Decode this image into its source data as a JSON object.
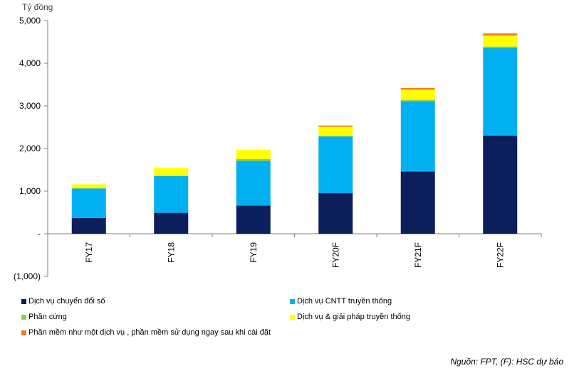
{
  "chart_data": {
    "type": "bar",
    "stacked": true,
    "unit_label": "Tỷ đồng",
    "categories": [
      "FY17",
      "FY18",
      "FY19",
      "FY20F",
      "FY21F",
      "FY22F"
    ],
    "ylim": [
      -1000,
      5000
    ],
    "y_ticks": [
      -1000,
      0,
      1000,
      2000,
      3000,
      4000,
      5000
    ],
    "y_tick_labels": [
      "(1,000)",
      "-",
      "1,000",
      "2,000",
      "3,000",
      "4,000",
      "5,000"
    ],
    "grid": false,
    "legend_position": "bottom",
    "series": [
      {
        "name": "Dịch vụ chuyển đổi số",
        "color": "#0b1f5c",
        "values": [
          370,
          490,
          660,
          950,
          1460,
          2300
        ]
      },
      {
        "name": "Dịch vụ CNTT truyền thống",
        "color": "#00b0f0",
        "values": [
          690,
          860,
          1050,
          1330,
          1650,
          2060
        ]
      },
      {
        "name": "Phần cứng",
        "color": "#92d050",
        "values": [
          10,
          10,
          40,
          20,
          30,
          30
        ]
      },
      {
        "name": "Dịch vụ & giải pháp truyền thống",
        "color": "#ffff00",
        "values": [
          90,
          180,
          220,
          210,
          240,
          260
        ]
      },
      {
        "name": "Phần mềm như một dịch vụ , phần mềm sử dụng ngay sau khi cài đặt",
        "color": "#f07f22",
        "values": [
          0,
          0,
          0,
          30,
          40,
          50
        ]
      }
    ]
  },
  "source_note": "Nguồn: FPT, (F): HSC dự báo"
}
